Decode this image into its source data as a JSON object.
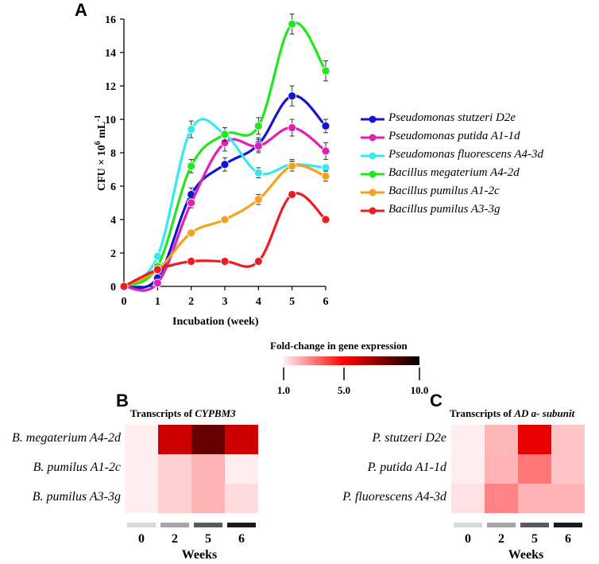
{
  "panel_letters": {
    "a": "A",
    "b": "B",
    "c": "C"
  },
  "chart_data": [
    {
      "type": "line",
      "panel": "A",
      "xlabel": "Incubation (week)",
      "ylabel_parts": {
        "base": "CFU × 10",
        "exp": "6",
        "unit": " mL",
        "unit_exp": "-1"
      },
      "x": [
        0,
        1,
        2,
        3,
        4,
        5,
        6
      ],
      "xlim": [
        0,
        6
      ],
      "ylim": [
        0,
        16
      ],
      "yticks": [
        0,
        2,
        4,
        6,
        8,
        10,
        12,
        14,
        16
      ],
      "series": [
        {
          "name": "Pseudomonas stutzeri D2e",
          "color": "#1414d2",
          "values": [
            0,
            0.5,
            5.5,
            7.3,
            8.5,
            11.4,
            9.6
          ],
          "errors": [
            0,
            0.2,
            0.4,
            0.4,
            0.4,
            0.6,
            0.4
          ]
        },
        {
          "name": "Pseudomonas putida A1-1d",
          "color": "#e020b4",
          "values": [
            0,
            0.2,
            5.0,
            8.6,
            8.4,
            9.5,
            8.1
          ],
          "errors": [
            0,
            0.1,
            0.3,
            0.5,
            0.4,
            0.5,
            0.5
          ]
        },
        {
          "name": "Pseudomonas fluorescens A4-3d",
          "color": "#36e8f0",
          "values": [
            0,
            1.8,
            9.4,
            9.1,
            6.8,
            7.3,
            7.1
          ],
          "errors": [
            0,
            0.1,
            0.5,
            0.4,
            0.3,
            0.3,
            0.2
          ]
        },
        {
          "name": "Bacillus megaterium A4-2d",
          "color": "#22e61e",
          "values": [
            0,
            1.2,
            7.2,
            9.1,
            9.6,
            15.7,
            12.9
          ],
          "errors": [
            0,
            0.1,
            0.4,
            0.4,
            0.5,
            0.6,
            0.6
          ]
        },
        {
          "name": "Bacillus pumilus A1-2c",
          "color": "#f7a01a",
          "values": [
            0,
            1.0,
            3.2,
            4.0,
            5.2,
            7.2,
            6.6
          ],
          "errors": [
            0,
            0.1,
            0.1,
            0.1,
            0.3,
            0.3,
            0.3
          ]
        },
        {
          "name": "Bacillus pumilus A3-3g",
          "color": "#ec1c24",
          "values": [
            0,
            1.0,
            1.5,
            1.5,
            1.5,
            5.5,
            4.0
          ],
          "errors": [
            0,
            0.0,
            0.1,
            0.1,
            0.1,
            0.2,
            0.1
          ]
        }
      ]
    },
    {
      "type": "heatmap",
      "panel": "B",
      "title_prefix": "Transcripts of ",
      "title_gene": "CYPBM3",
      "rows": [
        "B. megaterium A4-2d",
        "B. pumilus A1-2c",
        "B. pumilus A3-3g"
      ],
      "columns": [
        "0",
        "2",
        "5",
        "6"
      ],
      "xlabel": "Weeks",
      "values": [
        [
          1.0,
          6.0,
          8.0,
          6.0
        ],
        [
          1.0,
          1.5,
          2.0,
          1.0
        ],
        [
          1.0,
          1.5,
          2.0,
          1.3
        ]
      ]
    },
    {
      "type": "heatmap",
      "panel": "C",
      "title_prefix": "Transcripts of ",
      "title_gene": "AD a- subunit",
      "rows": [
        "P. stutzeri D2e",
        "P. putida A1-1d",
        "P. fluorescens A4-3d"
      ],
      "columns": [
        "0",
        "2",
        "5",
        "6"
      ],
      "xlabel": "Weeks",
      "values": [
        [
          1.0,
          1.9,
          5.5,
          1.7
        ],
        [
          1.0,
          2.0,
          3.0,
          1.7
        ],
        [
          1.2,
          2.8,
          2.0,
          2.0
        ]
      ]
    }
  ],
  "colorbar": {
    "title": "Fold-change in gene expression",
    "ticks": [
      "1.0",
      "5.0",
      "10.0"
    ],
    "tick_values": [
      1,
      5,
      10
    ],
    "range": [
      1,
      10
    ],
    "colors": [
      "#ffeef0",
      "#ff0000",
      "#000000"
    ]
  },
  "time_bar_colors": [
    "#d9d9d9",
    "#a6a6a6",
    "#595959",
    "#1a1a1a"
  ]
}
